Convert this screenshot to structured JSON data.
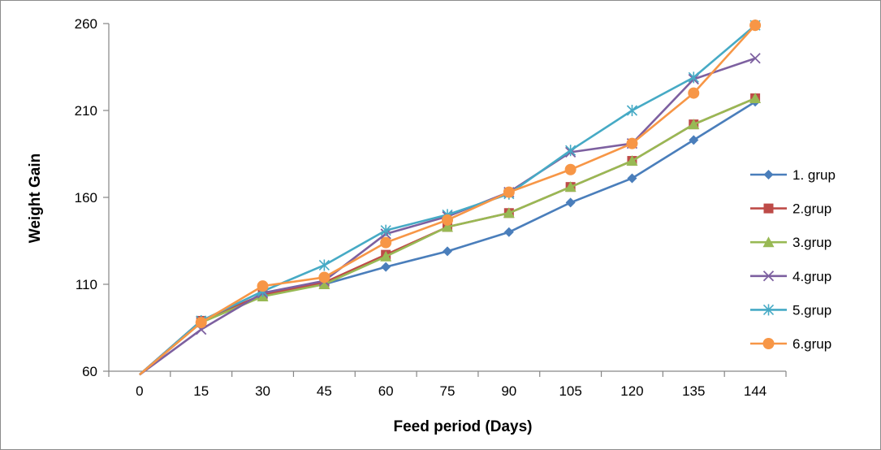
{
  "chart_data": {
    "type": "line",
    "title": "",
    "xlabel": "Feed period (Days)",
    "ylabel": "Weight Gain",
    "categories": [
      "0",
      "15",
      "30",
      "45",
      "60",
      "75",
      "90",
      "105",
      "120",
      "135",
      "144"
    ],
    "ylim": [
      60,
      260
    ],
    "yticks": [
      "60",
      "110",
      "160",
      "210",
      "260"
    ],
    "grid": false,
    "legend_position": "right",
    "series": [
      {
        "name": "1. grup",
        "color": "#4a7ebb",
        "marker": "diamond",
        "values": [
          58,
          89,
          104,
          110,
          120,
          129,
          140,
          157,
          171,
          193,
          215
        ]
      },
      {
        "name": "2.grup",
        "color": "#be4b48",
        "marker": "square",
        "values": [
          58,
          89,
          104,
          111,
          127,
          143,
          151,
          166,
          181,
          202,
          217
        ]
      },
      {
        "name": "3.grup",
        "color": "#98b954",
        "marker": "triangle",
        "values": [
          58,
          88,
          103,
          110,
          126,
          143,
          151,
          166,
          181,
          202,
          217
        ]
      },
      {
        "name": "4.grup",
        "color": "#7d60a0",
        "marker": "x",
        "values": [
          58,
          84,
          105,
          112,
          139,
          149,
          163,
          186,
          191,
          228,
          240
        ]
      },
      {
        "name": "5.grup",
        "color": "#46aac5",
        "marker": "star",
        "values": [
          58,
          89,
          106,
          121,
          141,
          150,
          162,
          187,
          210,
          229,
          259
        ]
      },
      {
        "name": "6.grup",
        "color": "#f79646",
        "marker": "circle",
        "values": [
          58,
          88,
          109,
          114,
          134,
          147,
          163,
          176,
          191,
          220,
          259
        ]
      }
    ]
  }
}
